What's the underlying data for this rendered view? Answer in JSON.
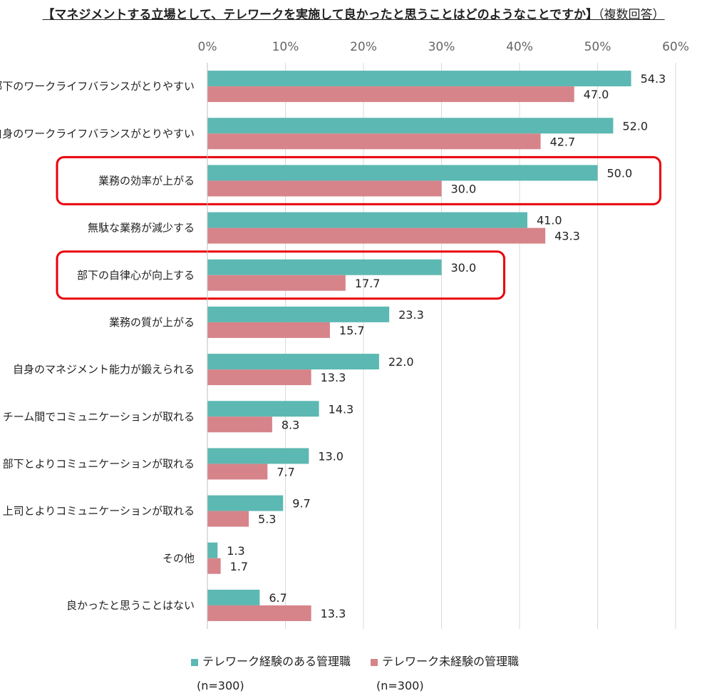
{
  "title": {
    "main": "【マネジメントする立場として、テレワークを実施して良かったと思うことはどのようなことですか】",
    "suffix": "（複数回答）"
  },
  "chart_data": {
    "type": "bar",
    "orientation": "horizontal",
    "xlim": [
      0,
      60
    ],
    "x_ticks": [
      "0%",
      "10%",
      "20%",
      "30%",
      "40%",
      "50%",
      "60%"
    ],
    "grid": true,
    "legend_position": "bottom",
    "categories": [
      "部下のワークライフバランスがとりやすい",
      "自身のワークライフバランスがとりやすい",
      "業務の効率が上がる",
      "無駄な業務が減少する",
      "部下の自律心が向上する",
      "業務の質が上がる",
      "自身のマネジメント能力が鍛えられる",
      "チーム間でコミュニケーションが取れる",
      "部下とよりコミュニケーションが取れる",
      "上司とよりコミュニケーションが取れる",
      "その他",
      "良かったと思うことはない"
    ],
    "series": [
      {
        "name": "テレワーク経験のある管理職",
        "n_label": "(n=300)",
        "color": "#5cb8b2",
        "values": [
          54.3,
          52.0,
          50.0,
          41.0,
          30.0,
          23.3,
          22.0,
          14.3,
          13.0,
          9.7,
          1.3,
          6.7
        ],
        "labels": [
          "54.3",
          "52.0",
          "50.0",
          "41.0",
          "30.0",
          "23.3",
          "22.0",
          "14.3",
          "13.0",
          "9.7",
          "1.3",
          "6.7"
        ]
      },
      {
        "name": "テレワーク未経験の管理職",
        "n_label": "(n=300)",
        "color": "#d6848a",
        "values": [
          47.0,
          42.7,
          30.0,
          43.3,
          17.7,
          15.7,
          13.3,
          8.3,
          7.7,
          5.3,
          1.7,
          13.3
        ],
        "labels": [
          "47.0",
          "42.7",
          "30.0",
          "43.3",
          "17.7",
          "15.7",
          "13.3",
          "8.3",
          "7.7",
          "5.3",
          "1.7",
          "13.3"
        ]
      }
    ],
    "highlighted_categories": [
      "業務の効率が上がる",
      "部下の自律心が向上する"
    ],
    "highlight_color": "#e8000b"
  }
}
